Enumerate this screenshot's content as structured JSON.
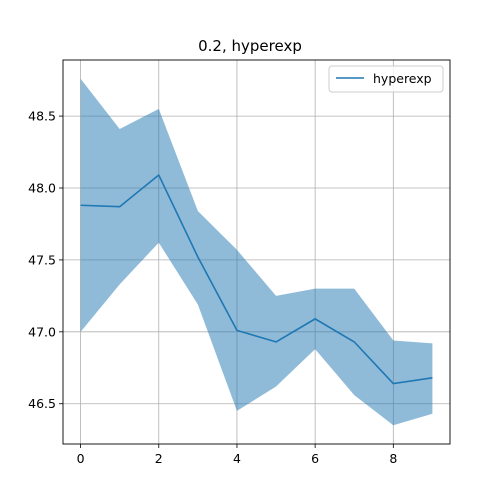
{
  "chart_data": {
    "type": "line",
    "title": "0.2, hyperexp",
    "xlabel": "",
    "ylabel": "",
    "xlim": [
      -0.45,
      9.45
    ],
    "ylim": [
      46.22,
      48.89
    ],
    "xticks": [
      0,
      2,
      4,
      6,
      8
    ],
    "xtick_labels": [
      "0",
      "2",
      "4",
      "6",
      "8"
    ],
    "yticks": [
      46.5,
      47.0,
      47.5,
      48.0,
      48.5
    ],
    "ytick_labels": [
      "46.5",
      "47.0",
      "47.5",
      "48.0",
      "48.5"
    ],
    "grid": true,
    "legend_position": "top-right",
    "series": [
      {
        "name": "hyperexp",
        "color": "#1f77b4",
        "x": [
          0,
          1,
          2,
          3,
          4,
          5,
          6,
          7,
          8,
          9
        ],
        "y": [
          47.88,
          47.87,
          48.09,
          47.52,
          47.01,
          46.93,
          47.09,
          46.93,
          46.64,
          46.68
        ],
        "band_upper": [
          48.76,
          48.41,
          48.55,
          47.84,
          47.57,
          47.25,
          47.3,
          47.3,
          46.94,
          46.92
        ],
        "band_lower": [
          47.0,
          47.33,
          47.62,
          47.19,
          46.45,
          46.62,
          46.88,
          46.56,
          46.35,
          46.43
        ],
        "band_color": "#1f77b4"
      }
    ]
  }
}
